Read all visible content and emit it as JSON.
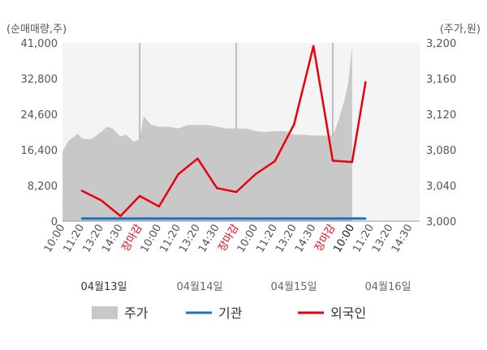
{
  "chart_data": {
    "type": "line",
    "left_axis_label": "(순매매량,주)",
    "right_axis_label": "(주가,원)",
    "left_ticks": [
      "41,000",
      "32,800",
      "24,600",
      "16,400",
      "8,200",
      "0"
    ],
    "right_ticks": [
      "3,200",
      "3,160",
      "3,120",
      "3,080",
      "3,040",
      "3,000"
    ],
    "left_ylim": [
      0,
      41000
    ],
    "right_ylim": [
      3000,
      3200
    ],
    "x_ticks": [
      {
        "label": "10:00",
        "color": "#555555"
      },
      {
        "label": "11:20",
        "color": "#555555"
      },
      {
        "label": "13:20",
        "color": "#555555"
      },
      {
        "label": "14:30",
        "color": "#555555"
      },
      {
        "label": "장마감",
        "color": "#e8000b"
      },
      {
        "label": "10:00",
        "color": "#555555"
      },
      {
        "label": "11:20",
        "color": "#555555"
      },
      {
        "label": "13:20",
        "color": "#555555"
      },
      {
        "label": "14:30",
        "color": "#555555"
      },
      {
        "label": "장마감",
        "color": "#e8000b"
      },
      {
        "label": "10:00",
        "color": "#555555"
      },
      {
        "label": "11:20",
        "color": "#555555"
      },
      {
        "label": "13:20",
        "color": "#555555"
      },
      {
        "label": "14:30",
        "color": "#555555"
      },
      {
        "label": "장마감",
        "color": "#e8000b"
      },
      {
        "label": "10:00",
        "color": "#222222"
      },
      {
        "label": "11:20",
        "color": "#555555"
      },
      {
        "label": "13:20",
        "color": "#555555"
      },
      {
        "label": "14:30",
        "color": "#555555"
      }
    ],
    "dates": [
      "04월13일",
      "04월14일",
      "04월15일",
      "04월16일"
    ],
    "day_separators_after_index": [
      4,
      9,
      14
    ],
    "price_area": {
      "name": "주가",
      "color": "#c8c8c8",
      "x": [
        0,
        0.3,
        0.8,
        1,
        1.2,
        1.5,
        2,
        2.3,
        2.6,
        3,
        3.3,
        3.5,
        3.7,
        4,
        4.2,
        4.6,
        5,
        5.5,
        6,
        6.5,
        7,
        7.5,
        8,
        8.5,
        9,
        9.5,
        10,
        10.5,
        11,
        11.5,
        12,
        12.5,
        13,
        13.3,
        13.6,
        14,
        14.3,
        14.6,
        14.8,
        15
      ],
      "y": [
        3078,
        3090,
        3098,
        3093,
        3092,
        3092,
        3100,
        3106,
        3104,
        3095,
        3097,
        3093,
        3089,
        3092,
        3118,
        3108,
        3106,
        3106,
        3104,
        3108,
        3108,
        3108,
        3106,
        3104,
        3104,
        3104,
        3101,
        3100,
        3101,
        3101,
        3097,
        3097,
        3096,
        3096,
        3096,
        3096,
        3113,
        3135,
        3155,
        3196
      ]
    },
    "series": [
      {
        "name": "기관",
        "color": "#1a73c4",
        "x": [
          1,
          14,
          15,
          15.7
        ],
        "values": [
          600,
          600,
          600,
          600
        ]
      },
      {
        "name": "외국인",
        "color": "#e8000b",
        "x": [
          1,
          2,
          3,
          4,
          5,
          6,
          7,
          8,
          9,
          10,
          11,
          12,
          13,
          14,
          15,
          15.7
        ],
        "values": [
          7000,
          4800,
          1200,
          5800,
          3400,
          10800,
          14400,
          7600,
          6700,
          10800,
          13800,
          22300,
          40300,
          13900,
          13600,
          32000
        ]
      }
    ]
  },
  "legend": [
    {
      "label": "주가",
      "kind": "area",
      "color": "#c8c8c8"
    },
    {
      "label": "기관",
      "kind": "line",
      "color": "#1a73c4"
    },
    {
      "label": "외국인",
      "kind": "line",
      "color": "#e8000b"
    }
  ]
}
